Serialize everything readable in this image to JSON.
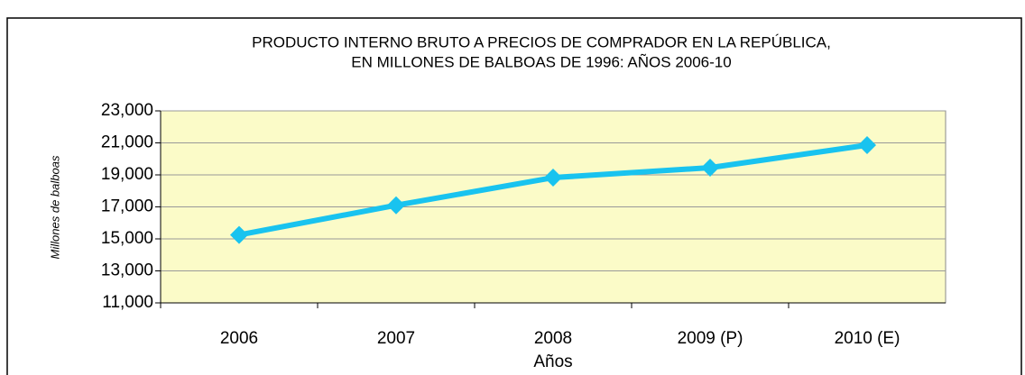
{
  "chart_data": {
    "type": "line",
    "title": [
      "PRODUCTO INTERNO BRUTO A PRECIOS DE COMPRADOR EN LA REPÚBLICA,",
      "EN MILLONES DE BALBOAS DE 1996: AÑOS 2006-10"
    ],
    "categories": [
      "2006",
      "2007",
      "2008",
      "2009 (P)",
      "2010 (E)"
    ],
    "series": [
      {
        "color": "#19c3ef",
        "values": [
          15250,
          17100,
          18830,
          19450,
          20860
        ]
      }
    ],
    "ylim": [
      11000,
      23000
    ],
    "yticks": [
      {
        "value": 11000,
        "label": "11,000"
      },
      {
        "value": 13000,
        "label": "13,000"
      },
      {
        "value": 15000,
        "label": "15,000"
      },
      {
        "value": 17000,
        "label": "17,000"
      },
      {
        "value": 19000,
        "label": "19,000"
      },
      {
        "value": 21000,
        "label": "21,000"
      },
      {
        "value": 23000,
        "label": "23,000"
      }
    ],
    "grid": true,
    "xlabel": "Años",
    "ylabel": "Millones  de  balboas"
  }
}
